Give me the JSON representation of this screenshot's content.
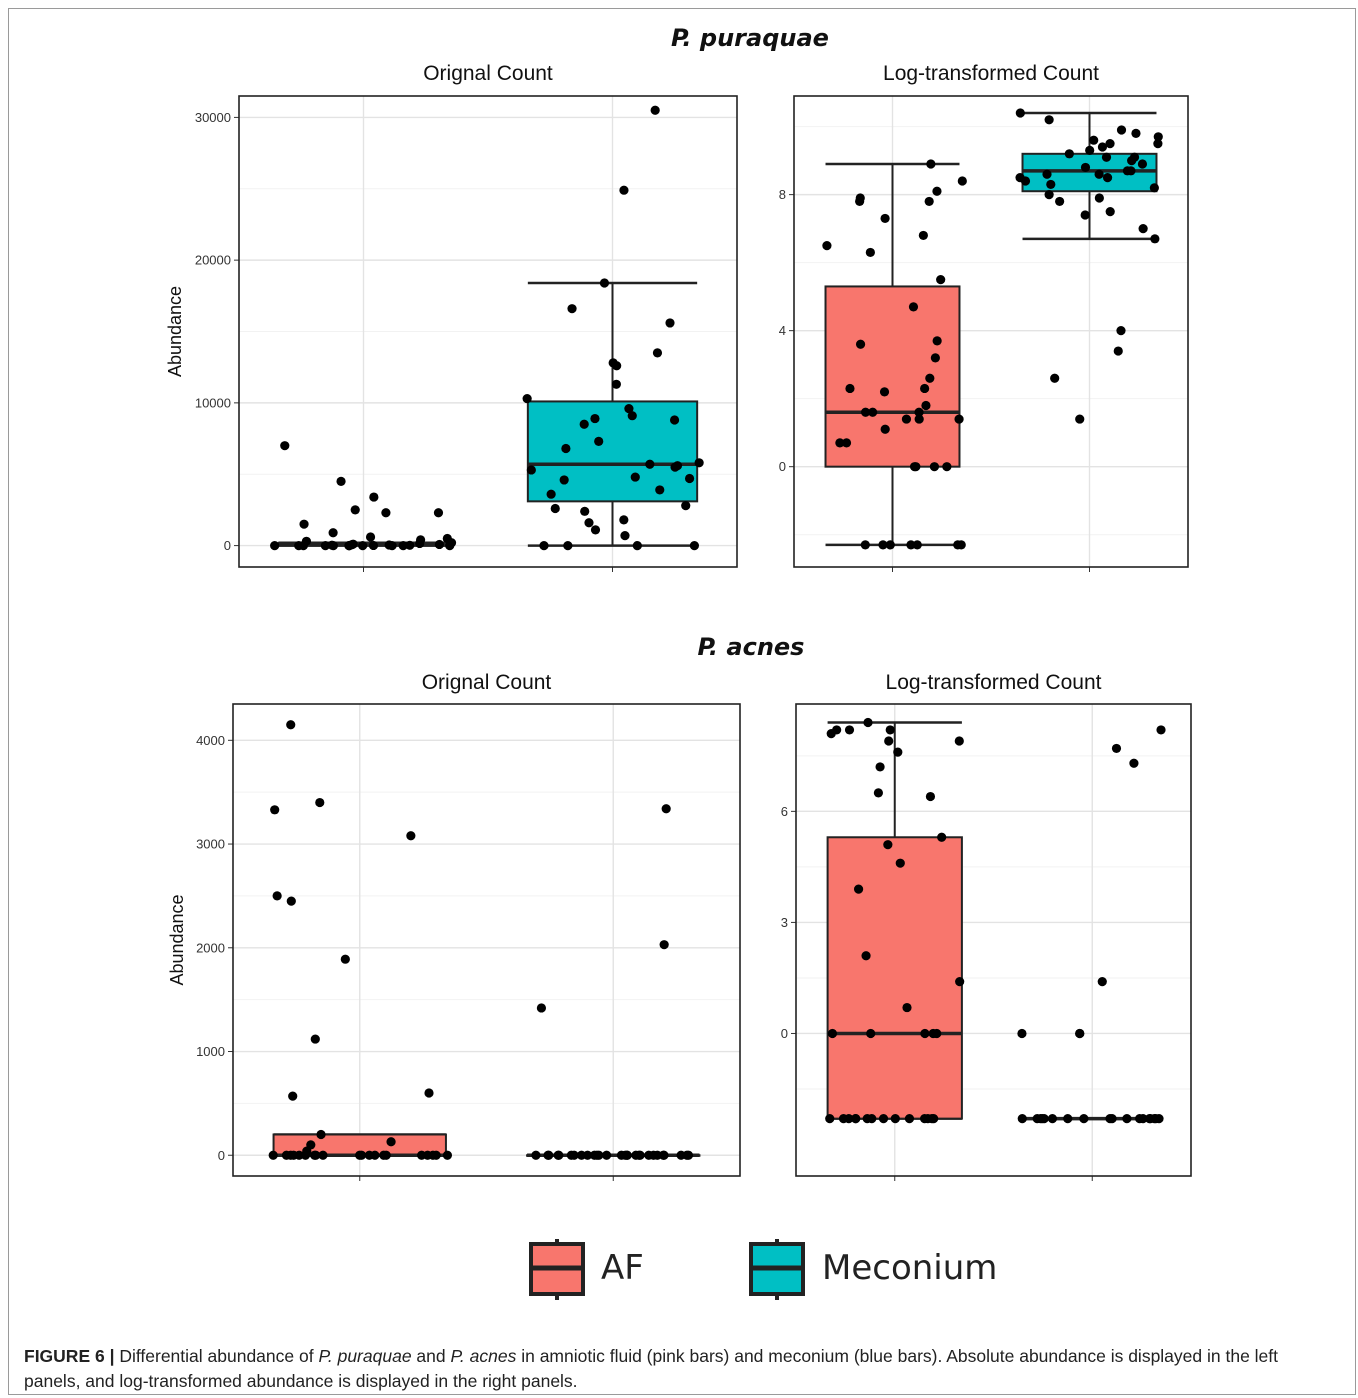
{
  "caption": {
    "label": "FIGURE 6 |",
    "parts": [
      {
        "t": " Differential abundance of ",
        "i": false
      },
      {
        "t": "P. puraquae",
        "i": true
      },
      {
        "t": " and ",
        "i": false
      },
      {
        "t": "P. acnes",
        "i": true
      },
      {
        "t": " in amniotic fluid (pink bars) and meconium (blue bars). Absolute abundance is displayed in the left panels, and log-transformed abundance is displayed in the right panels.",
        "i": false
      }
    ]
  },
  "legend": {
    "items": [
      {
        "label": "AF",
        "color": "#F8766D"
      },
      {
        "label": "Meconium",
        "color": "#00BFC4"
      }
    ]
  },
  "colors": {
    "AF": "#F8766D",
    "Meconium": "#00BFC4"
  },
  "chart_data": [
    {
      "type": "boxplot",
      "group_title": "P. puraquae",
      "title": "Orignal Count",
      "ylabel": "Abundance",
      "xlabel": "",
      "ylim": [
        -1500,
        31500
      ],
      "yticks": [
        0,
        10000,
        20000,
        30000
      ],
      "grid": true,
      "categories": [
        "AF",
        "Meconium"
      ],
      "boxes": [
        {
          "category": "AF",
          "whisker_low": 0,
          "q1": 0,
          "median": 50,
          "q3": 200,
          "whisker_high": 200,
          "points": [
            2300,
            7000,
            3400,
            4500,
            2500,
            2300,
            1500,
            900,
            600,
            500,
            400,
            300,
            200,
            150,
            100,
            80,
            60,
            40,
            30,
            20,
            10,
            0,
            0,
            0,
            0,
            0,
            0,
            0,
            0,
            0,
            0,
            0,
            0
          ]
        },
        {
          "category": "Meconium",
          "whisker_low": 0,
          "q1": 3100,
          "median": 5700,
          "q3": 10100,
          "whisker_high": 18400,
          "points": [
            30500,
            24900,
            18400,
            16600,
            15600,
            13500,
            12800,
            12600,
            11300,
            10300,
            9600,
            9100,
            8900,
            8800,
            8500,
            7300,
            6800,
            5800,
            5700,
            5600,
            5500,
            5300,
            4800,
            4700,
            4600,
            3900,
            3600,
            2800,
            2600,
            2400,
            1800,
            1600,
            1100,
            700,
            0,
            0,
            0,
            0
          ]
        }
      ]
    },
    {
      "type": "boxplot",
      "group_title": "P. puraquae",
      "title": "Log-transformed Count",
      "ylabel": "",
      "xlabel": "",
      "ylim": [
        -2.95,
        10.9
      ],
      "yticks": [
        0,
        4,
        8
      ],
      "grid": true,
      "categories": [
        "AF",
        "Meconium"
      ],
      "boxes": [
        {
          "category": "AF",
          "whisker_low": -2.3,
          "q1": 0,
          "median": 1.6,
          "q3": 5.3,
          "whisker_high": 8.9,
          "points": [
            8.9,
            8.4,
            8.1,
            7.9,
            7.8,
            7.8,
            7.3,
            6.8,
            6.5,
            6.3,
            5.5,
            4.7,
            3.7,
            3.6,
            3.2,
            2.6,
            2.3,
            2.3,
            2.2,
            1.8,
            1.6,
            1.6,
            1.6,
            1.4,
            1.4,
            1.4,
            1.1,
            0.7,
            0.7,
            0,
            0,
            0,
            0,
            -2.3,
            -2.3,
            -2.3,
            -2.3,
            -2.3,
            -2.3,
            -2.3
          ]
        },
        {
          "category": "Meconium",
          "whisker_low": 6.7,
          "q1": 8.1,
          "median": 8.7,
          "q3": 9.2,
          "whisker_high": 10.4,
          "points": [
            10.4,
            10.2,
            9.9,
            9.8,
            9.7,
            9.6,
            9.5,
            9.5,
            9.4,
            9.3,
            9.2,
            9.1,
            9.1,
            9.0,
            8.9,
            8.8,
            8.7,
            8.7,
            8.6,
            8.6,
            8.5,
            8.5,
            8.4,
            8.3,
            8.2,
            8.0,
            7.9,
            7.8,
            7.5,
            7.4,
            7.0,
            6.7,
            4.0,
            3.4,
            2.6,
            1.4
          ]
        }
      ]
    },
    {
      "type": "boxplot",
      "group_title": "P. acnes",
      "title": "Orignal Count",
      "ylabel": "Abundance",
      "xlabel": "",
      "ylim": [
        -200,
        4350
      ],
      "yticks": [
        0,
        1000,
        2000,
        3000,
        4000
      ],
      "grid": true,
      "categories": [
        "AF",
        "Meconium"
      ],
      "boxes": [
        {
          "category": "AF",
          "whisker_low": 0,
          "q1": 0,
          "median": 0,
          "q3": 200,
          "whisker_high": 200,
          "points": [
            4150,
            3400,
            3330,
            3080,
            2500,
            2450,
            1890,
            1120,
            600,
            570,
            200,
            130,
            100,
            40,
            0,
            0,
            0,
            0,
            0,
            0,
            0,
            0,
            0,
            0,
            0,
            0,
            0,
            0,
            0,
            0,
            0,
            0,
            0,
            0
          ]
        },
        {
          "category": "Meconium",
          "whisker_low": 0,
          "q1": 0,
          "median": 0,
          "q3": 0,
          "whisker_high": 0,
          "points": [
            3340,
            2030,
            1420,
            0,
            0,
            0,
            0,
            0,
            0,
            0,
            0,
            0,
            0,
            0,
            0,
            0,
            0,
            0,
            0,
            0,
            0,
            0,
            0,
            0,
            0,
            0,
            0,
            0,
            0,
            0,
            0
          ]
        }
      ]
    },
    {
      "type": "boxplot",
      "group_title": "P. acnes",
      "title": "Log-transformed Count",
      "ylabel": "",
      "xlabel": "",
      "ylim": [
        -3.85,
        8.9
      ],
      "yticks": [
        0,
        3,
        6
      ],
      "grid": true,
      "categories": [
        "AF",
        "Meconium"
      ],
      "boxes": [
        {
          "category": "AF",
          "whisker_low": -2.3,
          "q1": -2.3,
          "median": 0,
          "q3": 5.3,
          "whisker_high": 8.4,
          "points": [
            8.4,
            8.2,
            8.2,
            8.2,
            8.1,
            7.9,
            7.9,
            7.6,
            7.2,
            6.5,
            6.4,
            5.3,
            5.1,
            4.6,
            3.9,
            2.1,
            1.4,
            0.7,
            0,
            0,
            0,
            0,
            0,
            -2.3,
            -2.3,
            -2.3,
            -2.3,
            -2.3,
            -2.3,
            -2.3,
            -2.3,
            -2.3,
            -2.3,
            -2.3,
            -2.3,
            -2.3,
            -2.3
          ]
        },
        {
          "category": "Meconium",
          "whisker_low": -2.3,
          "q1": -2.3,
          "median": -2.3,
          "q3": -2.3,
          "whisker_high": -2.3,
          "points": [
            8.2,
            7.7,
            7.3,
            1.4,
            0,
            0,
            0,
            -2.3,
            -2.3,
            -2.3,
            -2.3,
            -2.3,
            -2.3,
            -2.3,
            -2.3,
            -2.3,
            -2.3,
            -2.3,
            -2.3,
            -2.3,
            -2.3,
            -2.3,
            -2.3,
            -2.3,
            -2.3
          ]
        }
      ]
    }
  ]
}
